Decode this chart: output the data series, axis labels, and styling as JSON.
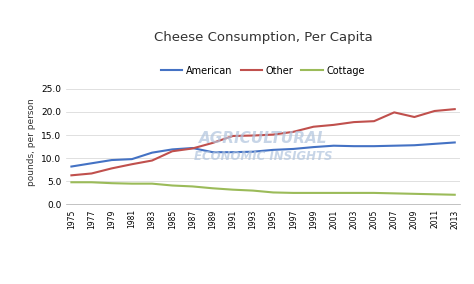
{
  "title": "Cheese Consumption, Per Capita",
  "ylabel": "pounds, per person",
  "years": [
    1975,
    1977,
    1979,
    1981,
    1983,
    1985,
    1987,
    1989,
    1991,
    1993,
    1995,
    1997,
    1999,
    2001,
    2003,
    2005,
    2007,
    2009,
    2011,
    2013
  ],
  "american": [
    8.2,
    8.9,
    9.6,
    9.8,
    11.2,
    11.9,
    12.2,
    11.3,
    11.3,
    11.4,
    11.8,
    12.0,
    12.4,
    12.7,
    12.6,
    12.6,
    12.7,
    12.8,
    13.1,
    13.4
  ],
  "other": [
    6.3,
    6.7,
    7.8,
    8.7,
    9.5,
    11.5,
    12.1,
    13.3,
    14.8,
    14.9,
    15.1,
    15.7,
    16.8,
    17.2,
    17.8,
    18.0,
    19.9,
    18.9,
    20.2,
    20.6
  ],
  "cottage": [
    4.8,
    4.8,
    4.6,
    4.5,
    4.5,
    4.1,
    3.9,
    3.5,
    3.2,
    3.0,
    2.6,
    2.5,
    2.5,
    2.5,
    2.5,
    2.5,
    2.4,
    2.3,
    2.2,
    2.1
  ],
  "american_color": "#4472C4",
  "other_color": "#C0504D",
  "cottage_color": "#9BBB59",
  "bg_color": "#FFFFFF",
  "ylim": [
    0,
    27
  ],
  "yticks": [
    0.0,
    5.0,
    10.0,
    15.0,
    20.0,
    25.0
  ],
  "watermark_line1": "AGRICULTURAL",
  "watermark_line2": "ECONOMIC INSIGHTS",
  "watermark_color": "#b0c4de",
  "legend_labels": [
    "American",
    "Other",
    "Cottage"
  ]
}
